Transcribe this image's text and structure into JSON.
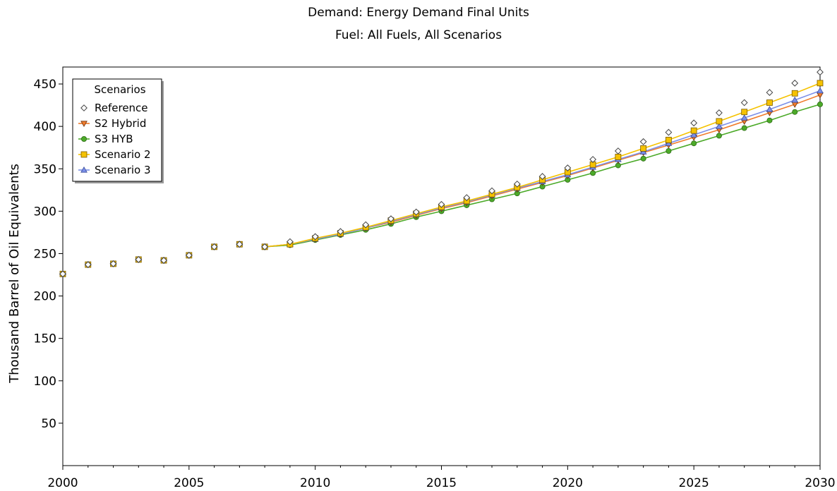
{
  "chart_data": {
    "type": "line",
    "title": "Demand: Energy Demand Final Units",
    "subtitle": "Fuel: All Fuels, All Scenarios",
    "ylabel": "Thousand Barrel of Oil Equivalents",
    "xlabel": "",
    "xlim": [
      2000,
      2030
    ],
    "ylim": [
      0,
      470
    ],
    "x_ticks": [
      2000,
      2005,
      2010,
      2015,
      2020,
      2025,
      2030
    ],
    "y_ticks": [
      50,
      100,
      150,
      200,
      250,
      300,
      350,
      400,
      450
    ],
    "grid": false,
    "legend": {
      "title": "Scenarios",
      "placement": "top-left"
    },
    "x": [
      2000,
      2001,
      2002,
      2003,
      2004,
      2005,
      2006,
      2007,
      2008,
      2009,
      2010,
      2011,
      2012,
      2013,
      2014,
      2015,
      2016,
      2017,
      2018,
      2019,
      2020,
      2021,
      2022,
      2023,
      2024,
      2025,
      2026,
      2027,
      2028,
      2029,
      2030
    ],
    "series": [
      {
        "name": "Reference",
        "color": "#555555",
        "marker": "diamond",
        "line": false,
        "values": [
          226,
          237,
          238,
          243,
          242,
          248,
          258,
          261,
          258,
          264,
          270,
          276,
          284,
          291,
          299,
          308,
          316,
          324,
          332,
          341,
          351,
          361,
          371,
          382,
          393,
          404,
          416,
          428,
          440,
          451,
          464
        ]
      },
      {
        "name": "S2 Hybrid",
        "color": "#f07c2c",
        "marker": "triangle-down",
        "line": true,
        "values": [
          226,
          237,
          238,
          243,
          242,
          248,
          258,
          261,
          258,
          261,
          267,
          273,
          280,
          287,
          295,
          303,
          310,
          318,
          326,
          334,
          342,
          351,
          360,
          369,
          378,
          387,
          396,
          406,
          416,
          426,
          437
        ]
      },
      {
        "name": "S3 HYB",
        "color": "#4caa29",
        "marker": "circle",
        "line": true,
        "values": [
          226,
          237,
          238,
          243,
          242,
          248,
          258,
          261,
          258,
          260,
          266,
          272,
          278,
          285,
          293,
          300,
          307,
          314,
          321,
          329,
          337,
          345,
          354,
          362,
          371,
          380,
          389,
          398,
          407,
          417,
          426
        ]
      },
      {
        "name": "Scenario 2",
        "color": "#f5c200",
        "marker": "square",
        "line": true,
        "values": [
          226,
          237,
          238,
          243,
          242,
          248,
          258,
          261,
          258,
          261,
          268,
          274,
          281,
          289,
          297,
          305,
          312,
          320,
          328,
          337,
          346,
          355,
          364,
          374,
          384,
          395,
          406,
          417,
          428,
          439,
          451
        ]
      },
      {
        "name": "Scenario 3",
        "color": "#7b8fe8",
        "marker": "triangle-up",
        "line": true,
        "values": [
          226,
          237,
          238,
          243,
          242,
          248,
          258,
          261,
          258,
          261,
          267,
          273,
          280,
          288,
          296,
          304,
          311,
          319,
          327,
          335,
          343,
          352,
          361,
          370,
          380,
          390,
          400,
          410,
          420,
          431,
          442
        ]
      }
    ]
  }
}
